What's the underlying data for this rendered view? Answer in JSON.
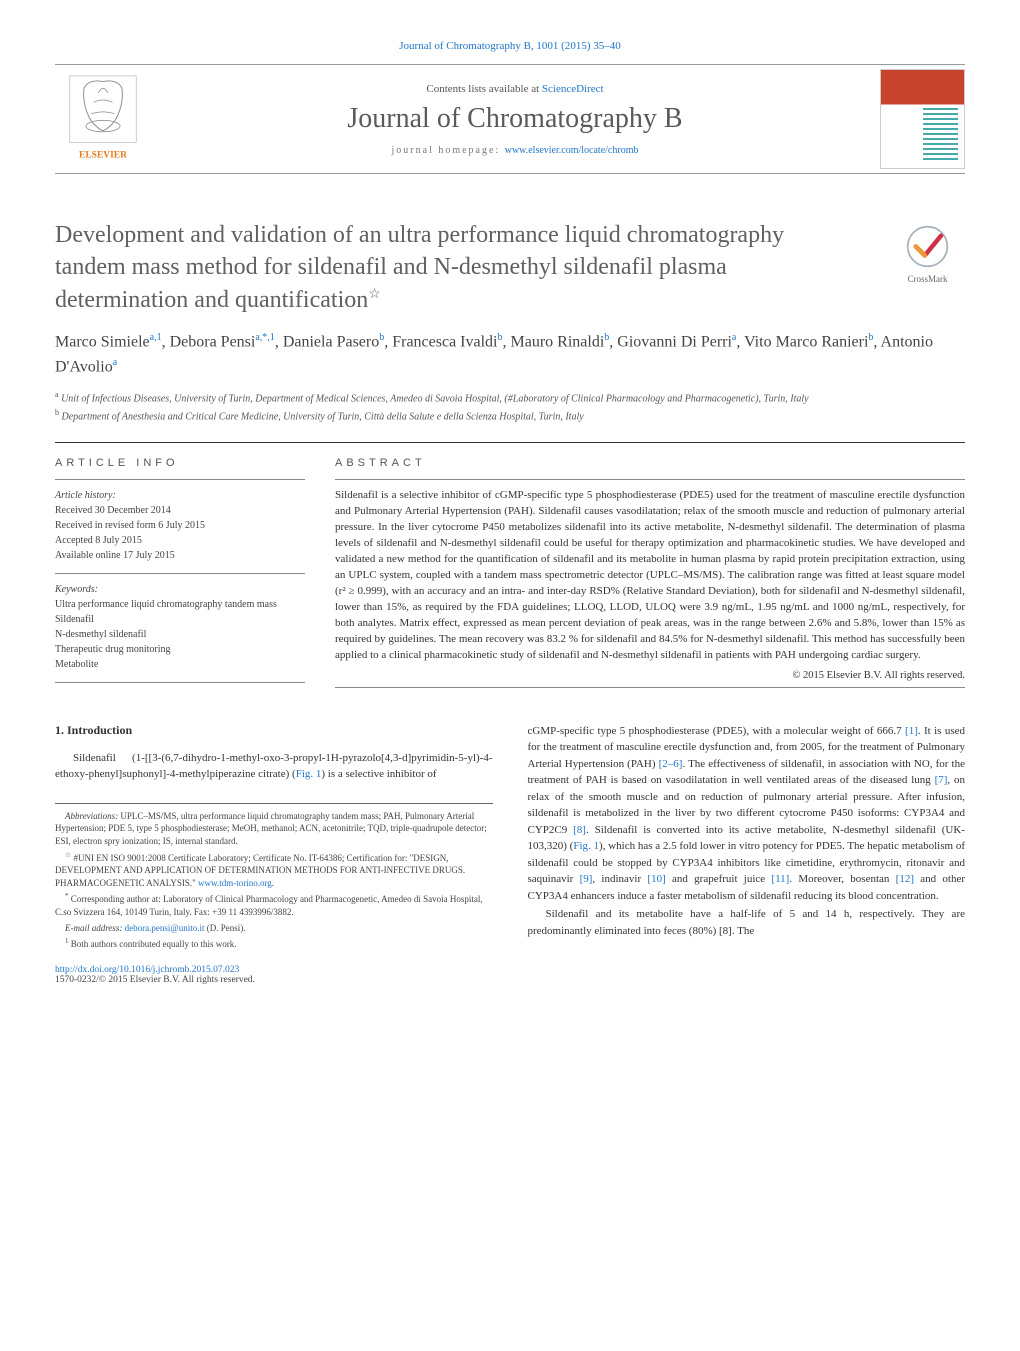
{
  "citation": "Journal of Chromatography B, 1001 (2015) 35–40",
  "header": {
    "contents_prefix": "Contents lists available at ",
    "contents_link": "ScienceDirect",
    "journal_name": "Journal of Chromatography B",
    "homepage_prefix": "journal homepage: ",
    "homepage_link": "www.elsevier.com/locate/chromb",
    "publisher": "ELSEVIER"
  },
  "crossmark_label": "CrossMark",
  "title": "Development and validation of an ultra performance liquid chromatography tandem mass method for sildenafil and N-desmethyl sildenafil plasma determination and quantification",
  "title_star": "☆",
  "authors_html": "Marco Simiele<sup>a,1</sup>, Debora Pensi<sup>a,*,1</sup>, Daniela Pasero<sup>b</sup>, Francesca Ivaldi<sup>b</sup>, Mauro Rinaldi<sup>b</sup>, Giovanni Di Perri<sup>a</sup>, Vito Marco Ranieri<sup>b</sup>, Antonio D'Avolio<sup>a</sup>",
  "affiliations": [
    {
      "mark": "a",
      "text": "Unit of Infectious Diseases, University of Turin, Department of Medical Sciences, Amedeo di Savoia Hospital, (#Laboratory of Clinical Pharmacology and Pharmacogenetic), Turin, Italy"
    },
    {
      "mark": "b",
      "text": "Department of Anesthesia and Critical Care Medicine, University of Turin, Città della Salute e della Scienza Hospital, Turin, Italy"
    }
  ],
  "article_info": {
    "heading": "article info",
    "history_label": "Article history:",
    "history": [
      "Received 30 December 2014",
      "Received in revised form 6 July 2015",
      "Accepted 8 July 2015",
      "Available online 17 July 2015"
    ],
    "keywords_label": "Keywords:",
    "keywords": [
      "Ultra performance liquid chromatography tandem mass",
      "Sildenafil",
      "N-desmethyl sildenafil",
      "Therapeutic drug monitoring",
      "Metabolite"
    ]
  },
  "abstract": {
    "heading": "abstract",
    "text": "Sildenafil is a selective inhibitor of cGMP-specific type 5 phosphodiesterase (PDE5) used for the treatment of masculine erectile dysfunction and Pulmonary Arterial Hypertension (PAH). Sildenafil causes vasodilatation; relax of the smooth muscle and reduction of pulmonary arterial pressure. In the liver cytocrome P450 metabolizes sildenafil into its active metabolite, N-desmethyl sildenafil. The determination of plasma levels of sildenafil and N-desmethyl sildenafil could be useful for therapy optimization and pharmacokinetic studies. We have developed and validated a new method for the quantification of sildenafil and its metabolite in human plasma by rapid protein precipitation extraction, using an UPLC system, coupled with a tandem mass spectrometric detector (UPLC–MS/MS). The calibration range was fitted at least square model (r² ≥ 0.999), with an accuracy and an intra- and inter-day RSD% (Relative Standard Deviation), both for sildenafil and N-desmethyl sildenafil, lower than 15%, as required by the FDA guidelines; LLOQ, LLOD, ULOQ were 3.9 ng/mL, 1.95 ng/mL and 1000 ng/mL, respectively, for both analytes. Matrix effect, expressed as mean percent deviation of peak areas, was in the range between 2.6% and 5.8%, lower than 15% as required by guidelines. The mean recovery was 83.2 % for sildenafil and 84.5% for N-desmethyl sildenafil. This method has successfully been applied to a clinical pharmacokinetic study of sildenafil and N-desmethyl sildenafil in patients with PAH undergoing cardiac surgery.",
    "copyright": "© 2015 Elsevier B.V. All rights reserved."
  },
  "intro": {
    "heading": "1. Introduction",
    "para1_pre": "Sildenafil (1-[[3-(6,7-dihydro-1-methyl-oxo-3-propyl-1H-pyrazolo[4,3-d]pyrimidin-5-yl)-4-ethoxy-phenyl]suphonyl]-4-methylpiperazine citrate) (",
    "fig1": "Fig. 1",
    "para1_post": ") is a selective inhibitor of",
    "col2_p1": "cGMP-specific type 5 phosphodiesterase (PDE5), with a molecular weight of 666.7 [1]. It is used for the treatment of masculine erectile dysfunction and, from 2005, for the treatment of Pulmonary Arterial Hypertension (PAH) [2–6]. The effectiveness of sildenafil, in association with NO, for the treatment of PAH is based on vasodilatation in well ventilated areas of the diseased lung [7], on relax of the smooth muscle and on reduction of pulmonary arterial pressure. After infusion, sildenafil is metabolized in the liver by two different cytocrome P450 isoforms: CYP3A4 and CYP2C9 [8]. Sildenafil is converted into its active metabolite, N-desmethyl sildenafil (UK-103,320) (Fig. 1), which has a 2.5 fold lower in vitro potency for PDE5. The hepatic metabolism of sildenafil could be stopped by CYP3A4 inhibitors like cimetidine, erythromycin, ritonavir and saquinavir [9], indinavir [10] and grapefruit juice [11]. Moreover, bosentan [12] and other CYP3A4 enhancers induce a faster metabolism of sildenafil reducing its blood concentration.",
    "col2_p2": "Sildenafil and its metabolite have a half-life of 5 and 14 h, respectively. They are predominantly eliminated into feces (80%) [8]. The"
  },
  "footnotes": {
    "abbrev_label": "Abbreviations:",
    "abbrev_text": " UPLC–MS/MS, ultra performance liquid chromatography tandem mass; PAH, Pulmonary Arterial Hypertension; PDE 5, type 5 phosphodiesterase; MeOH, methanol; ACN, acetonitrile; TQD, triple-quadrupole detector; ESI, electron spry ionization; IS, internal standard.",
    "star_text": "#UNI EN ISO 9001:2008 Certificate Laboratory; Certificate No. IT-64386; Certification for: \"DESIGN, DEVELOPMENT AND APPLICATION OF DETERMINATION METHODS FOR ANTI-INFECTIVE DRUGS. PHARMACOGENETIC ANALYSIS.\" ",
    "star_link": "www.tdm-torino.org",
    "star_post": ".",
    "corresp": "Corresponding author at: Laboratory of Clinical Pharmacology and Pharmacogenetic, Amedeo di Savoia Hospital, C.so Svizzera 164, 10149 Turin, Italy. Fax: +39 11 4393996/3882.",
    "email_label": "E-mail address: ",
    "email": "debora.pensi@unito.it",
    "email_post": " (D. Pensi).",
    "equal": "Both authors contributed equally to this work."
  },
  "bottom": {
    "doi": "http://dx.doi.org/10.1016/j.jchromb.2015.07.023",
    "issn_copy": "1570-0232/© 2015 Elsevier B.V. All rights reserved."
  },
  "colors": {
    "link": "#2176c7",
    "text": "#333333",
    "heading_gray": "#606060",
    "elsevier_orange": "#e67a1a"
  }
}
